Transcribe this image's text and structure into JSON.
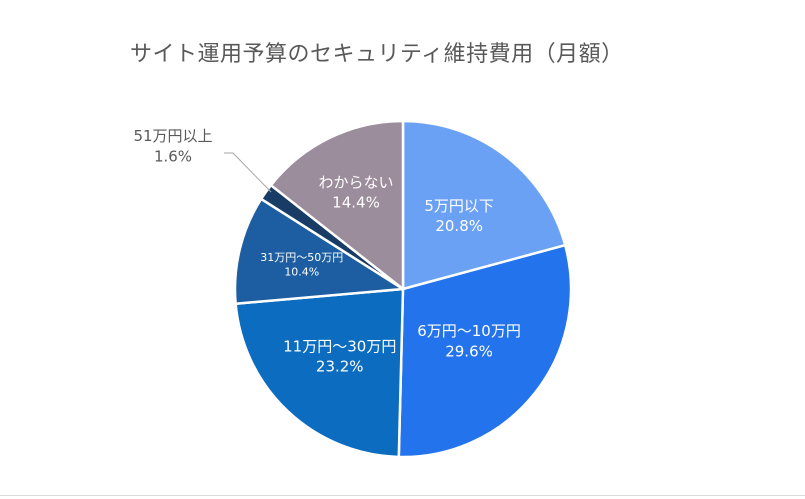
{
  "chart_data": {
    "type": "pie",
    "title": "サイト運用予算のセキュリティ維持費用（月額）",
    "slices": [
      {
        "name": "5万円以下",
        "value": 20.8,
        "label": "20.8%",
        "color": "#6aa1f4"
      },
      {
        "name": "6万円〜10万円",
        "value": 29.6,
        "label": "29.6%",
        "color": "#2373ec"
      },
      {
        "name": "11万円〜30万円",
        "value": 23.2,
        "label": "23.2%",
        "color": "#0b6cc0"
      },
      {
        "name": "31万円〜50万円",
        "value": 10.4,
        "label": "10.4%",
        "color": "#1d5ea2"
      },
      {
        "name": "51万円以上",
        "value": 1.6,
        "label": "1.6%",
        "color": "#183c66"
      },
      {
        "name": "わからない",
        "value": 14.4,
        "label": "14.4%",
        "color": "#9b8d9b"
      }
    ],
    "start_angle_deg": 0,
    "direction": "clockwise",
    "legend": "none",
    "label_color_inside": "#ffffff",
    "label_color_outside": "#595959"
  }
}
